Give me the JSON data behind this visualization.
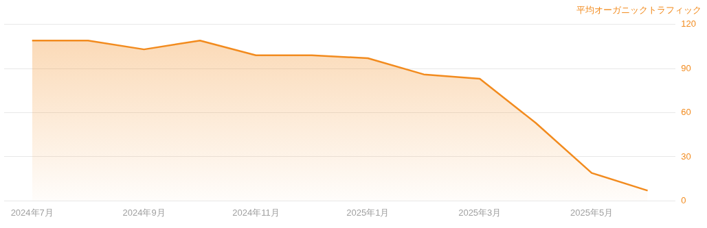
{
  "chart_data": {
    "type": "area",
    "ylabel": "平均オーガニックトラフィック",
    "categories": [
      "2024年7月",
      null,
      "2024年9月",
      null,
      "2024年11月",
      null,
      "2025年1月",
      null,
      "2025年3月",
      null,
      "2025年5月",
      null
    ],
    "series": [
      {
        "color": "#f28b1e",
        "values": [
          109,
          109,
          103,
          109,
          99,
          99,
          97,
          86,
          83,
          53,
          19,
          7
        ]
      }
    ],
    "ylim": [
      0,
      120
    ],
    "yticks": [
      0,
      30,
      60,
      90,
      120
    ],
    "grid": "y",
    "legend": false,
    "marker": "none",
    "line_style": "solid"
  }
}
